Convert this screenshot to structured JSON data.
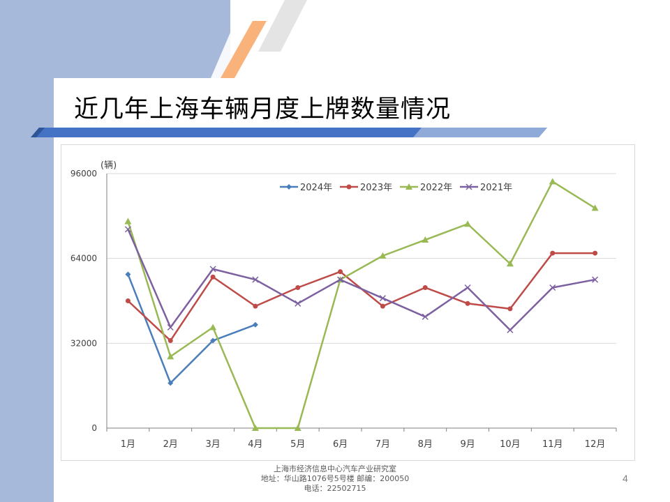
{
  "slide": {
    "title": "近几年上海车辆月度上牌数量情况",
    "page_number": "4",
    "footer": {
      "line1": "上海市经济信息中心汽车产业研究室",
      "line2": "地址：华山路1076号5号楼   邮编：200050",
      "line3": "电话：22502715"
    },
    "colors": {
      "band": "#a7b9da",
      "bar": "#4472c4",
      "accent_orange": "#f9b27a",
      "accent_gray": "#e7e6e6"
    }
  },
  "chart_data": {
    "type": "line",
    "ylabel": "(辆)",
    "ylim": [
      0,
      96000
    ],
    "yticks": [
      "0",
      "32000",
      "64000",
      "96000"
    ],
    "categories": [
      "1月",
      "2月",
      "3月",
      "4月",
      "5月",
      "6月",
      "7月",
      "8月",
      "9月",
      "10月",
      "11月",
      "12月"
    ],
    "grid": true,
    "legend_position": "top",
    "series": [
      {
        "name": "2024年",
        "color": "#4a7ebb",
        "marker": "diamond",
        "values": [
          58000,
          17000,
          33000,
          39000,
          null,
          null,
          null,
          null,
          null,
          null,
          null,
          null
        ]
      },
      {
        "name": "2023年",
        "color": "#be4b48",
        "marker": "circle",
        "values": [
          48000,
          33000,
          57000,
          46000,
          53000,
          59000,
          46000,
          53000,
          47000,
          45000,
          66000,
          66000
        ]
      },
      {
        "name": "2022年",
        "color": "#98b954",
        "marker": "triangle",
        "values": [
          78000,
          27000,
          38000,
          0,
          0,
          56000,
          65000,
          71000,
          77000,
          62000,
          93000,
          83000
        ]
      },
      {
        "name": "2021年",
        "color": "#7d60a0",
        "marker": "x",
        "values": [
          75000,
          38000,
          60000,
          56000,
          47000,
          56000,
          49000,
          42000,
          53000,
          37000,
          53000,
          56000
        ]
      }
    ]
  }
}
